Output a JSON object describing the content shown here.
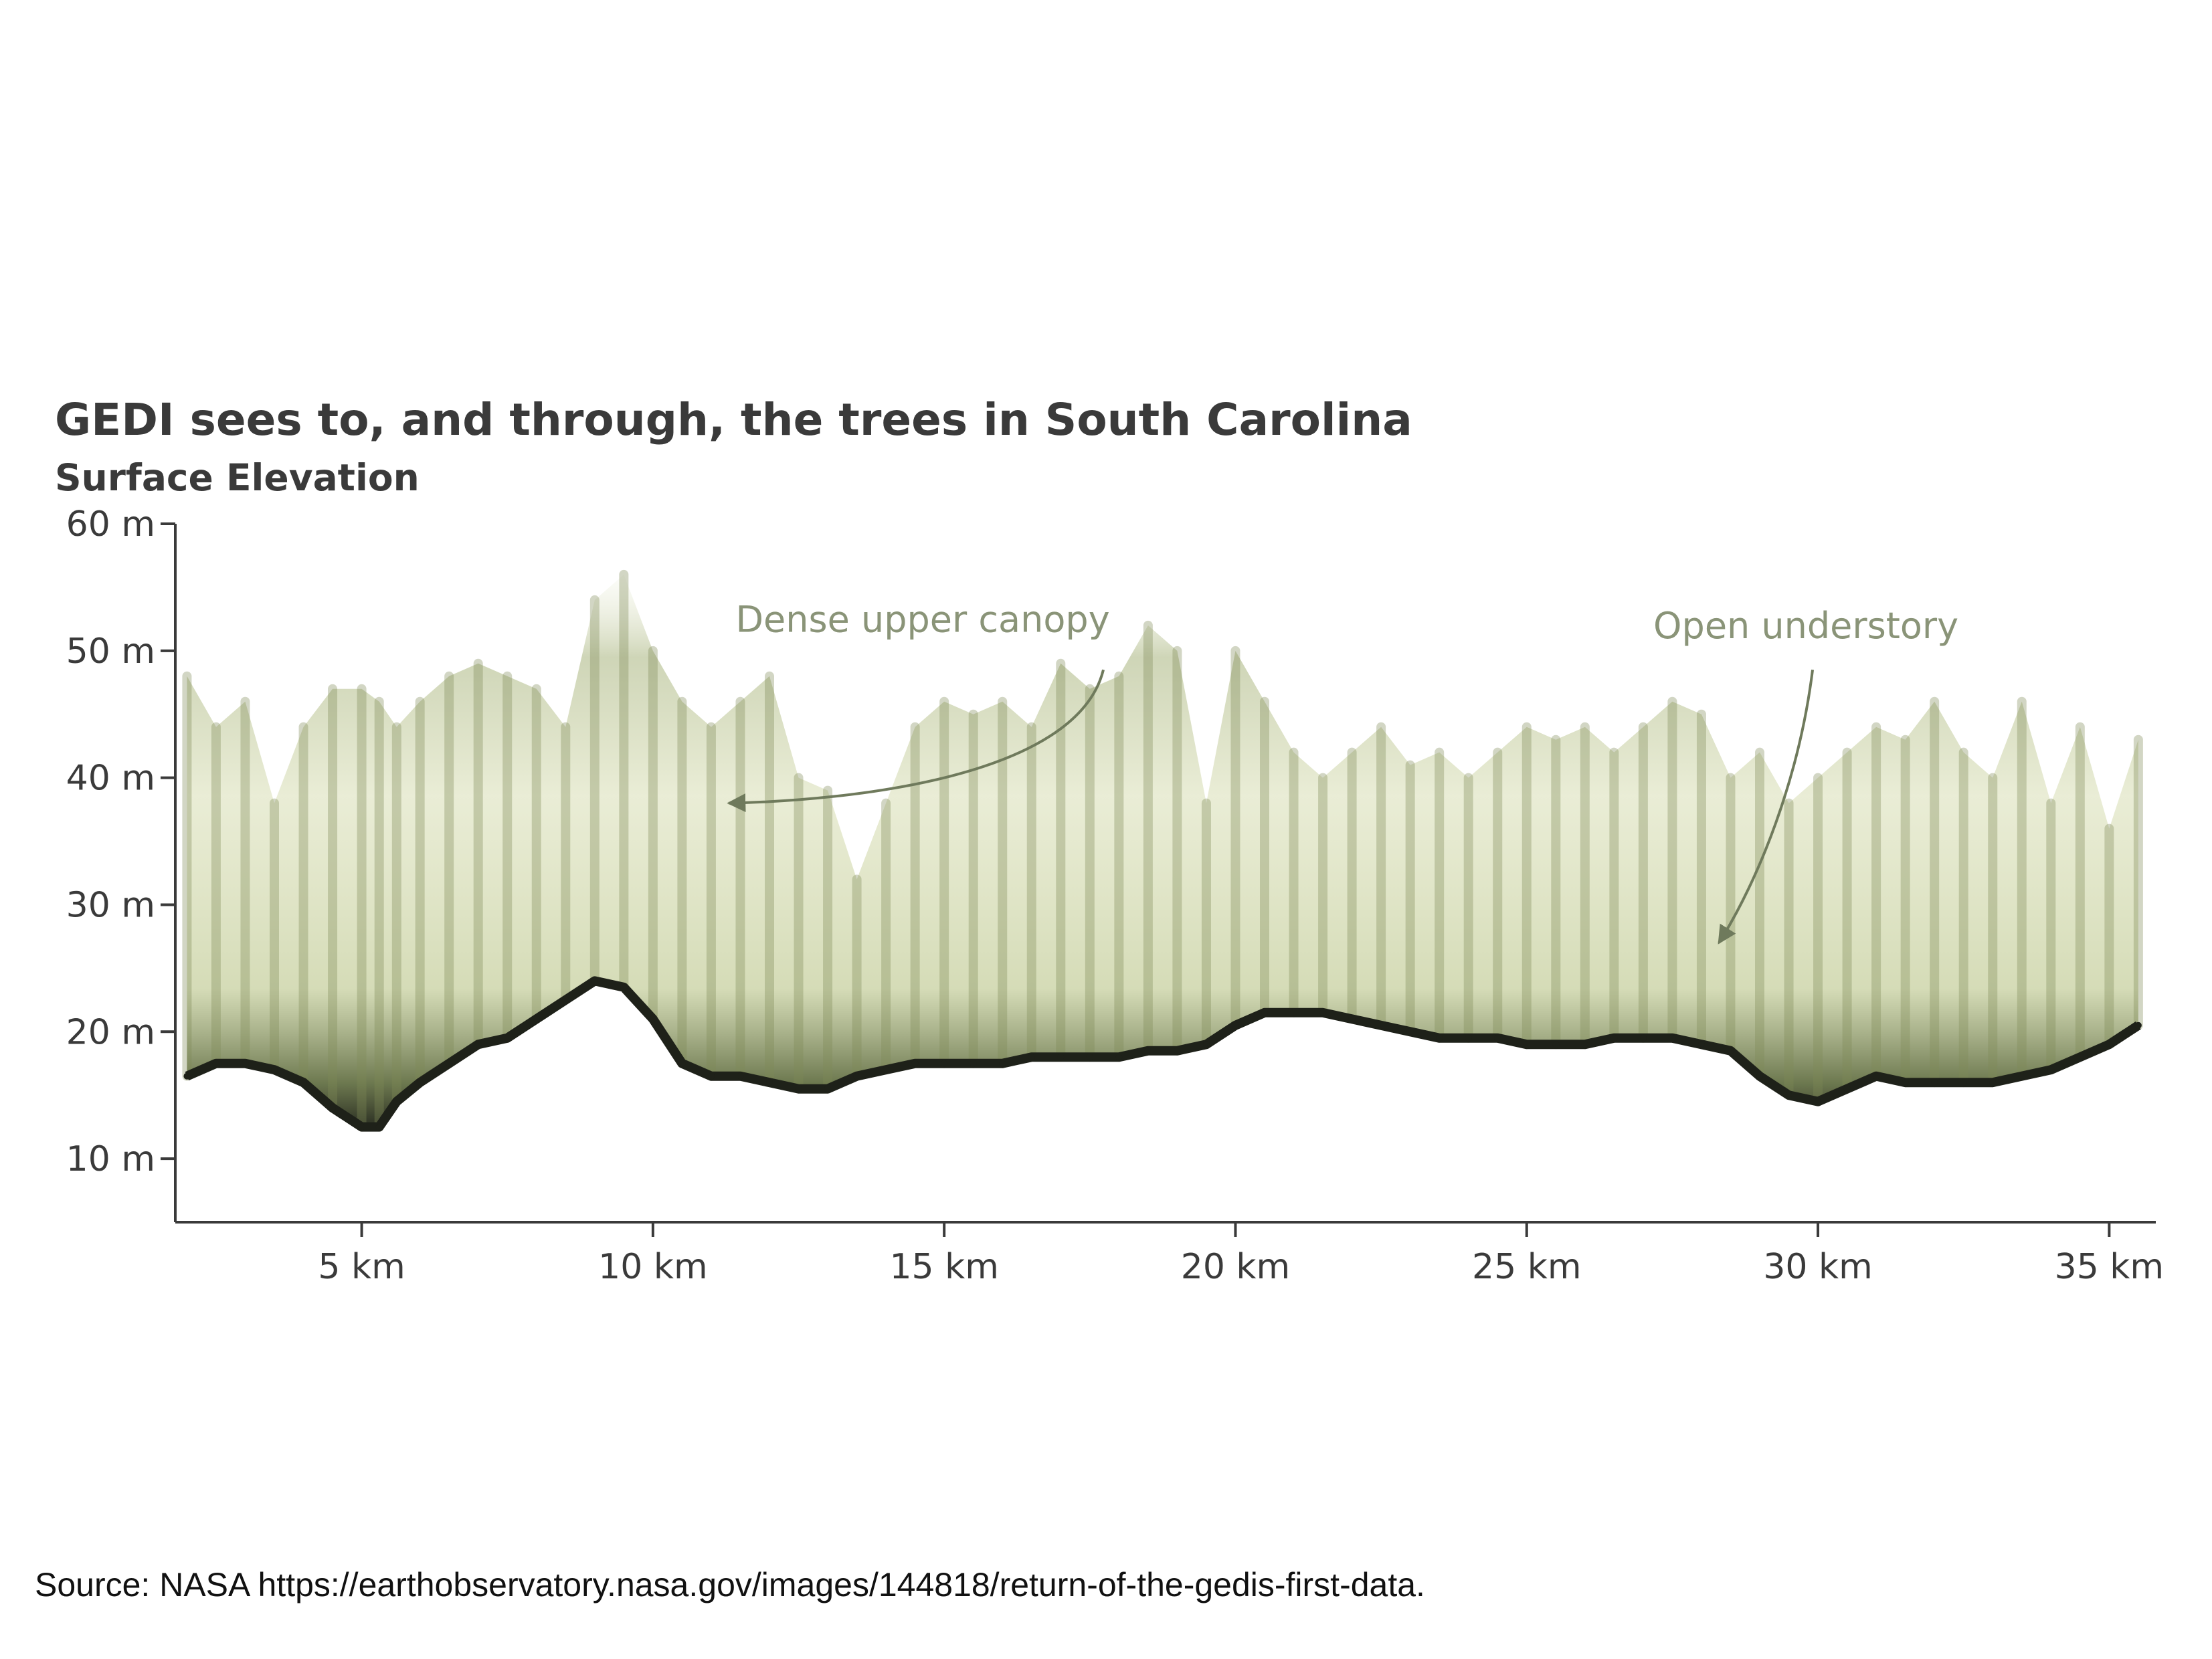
{
  "chart_data": {
    "type": "area",
    "title": "GEDI sees to, and through, the trees in South Carolina",
    "subtitle": "Surface Elevation",
    "xlabel": "",
    "ylabel": "",
    "x_unit": "km",
    "y_unit": "m",
    "xlim": [
      1.8,
      35.8
    ],
    "ylim": [
      5,
      60
    ],
    "x_ticks": [
      5,
      10,
      15,
      20,
      25,
      30,
      35
    ],
    "x_tick_labels": [
      "5 km",
      "10 km",
      "15 km",
      "20 km",
      "25 km",
      "30 km",
      "35 km"
    ],
    "y_ticks": [
      10,
      20,
      30,
      40,
      50,
      60
    ],
    "y_tick_labels": [
      "10 m",
      "20 m",
      "30 m",
      "40 m",
      "50 m",
      "60 m"
    ],
    "grid": false,
    "legend": false,
    "colors": {
      "ground": "#1e2119",
      "canopy_dark": "#2a2e22",
      "canopy_mid": "#7d8a56",
      "canopy_light": "#e6ebcf",
      "axis": "#3a3a3a",
      "annotation": "#6f7a5c"
    },
    "series": [
      {
        "name": "",
        "x": [
          2.0,
          2.5,
          3.0,
          3.5,
          4.0,
          4.5,
          5.0,
          5.3,
          5.6,
          6.0,
          6.5,
          7.0,
          7.5,
          8.0,
          8.5,
          9.0,
          9.5,
          10.0,
          10.5,
          11.0,
          11.5,
          12.0,
          12.5,
          13.0,
          13.5,
          14.0,
          14.5,
          15.0,
          15.5,
          16.0,
          16.5,
          17.0,
          17.5,
          18.0,
          18.5,
          19.0,
          19.5,
          20.0,
          20.5,
          21.0,
          21.5,
          22.0,
          22.5,
          23.0,
          23.5,
          24.0,
          24.5,
          25.0,
          25.5,
          26.0,
          26.5,
          27.0,
          27.5,
          28.0,
          28.5,
          29.0,
          29.5,
          30.0,
          30.5,
          31.0,
          31.5,
          32.0,
          32.5,
          33.0,
          33.5,
          34.0,
          34.5,
          35.0,
          35.5
        ],
        "ground_elevation": [
          16.5,
          17.5,
          17.5,
          17.0,
          16.0,
          14.0,
          12.5,
          12.5,
          14.5,
          16.0,
          17.5,
          19.0,
          19.5,
          21.0,
          22.5,
          24.0,
          23.5,
          21.0,
          17.5,
          16.5,
          16.5,
          16.0,
          15.5,
          15.5,
          16.5,
          17.0,
          17.5,
          17.5,
          17.5,
          17.5,
          18.0,
          18.0,
          18.0,
          18.0,
          18.5,
          18.5,
          19.0,
          20.5,
          21.5,
          21.5,
          21.5,
          21.0,
          20.5,
          20.0,
          19.5,
          19.5,
          19.5,
          19.0,
          19.0,
          19.0,
          19.5,
          19.5,
          19.5,
          19.0,
          18.5,
          16.5,
          15.0,
          14.5,
          15.5,
          16.5,
          16.0,
          16.0,
          16.0,
          16.0,
          16.5,
          17.0,
          18.0,
          19.0,
          20.5
        ],
        "canopy_top": [
          48,
          44,
          46,
          38,
          44,
          47,
          47,
          46,
          44,
          46,
          48,
          49,
          48,
          47,
          44,
          54,
          56,
          50,
          46,
          44,
          46,
          48,
          40,
          39,
          32,
          38,
          44,
          46,
          45,
          46,
          44,
          49,
          47,
          48,
          52,
          50,
          38,
          50,
          46,
          42,
          40,
          42,
          44,
          41,
          42,
          40,
          42,
          44,
          43,
          44,
          42,
          44,
          46,
          45,
          40,
          42,
          38,
          40,
          42,
          44,
          43,
          46,
          42,
          40,
          46,
          38,
          44,
          36,
          43
        ]
      }
    ],
    "annotations": [
      {
        "text": "Dense upper canopy",
        "x": 11.3,
        "y": 38
      },
      {
        "text": "Open understory",
        "x": 28.3,
        "y": 27
      }
    ]
  },
  "source_text": "Source: NASA https://earthobservatory.nasa.gov/images/144818/return-of-the-gedis-first-data."
}
